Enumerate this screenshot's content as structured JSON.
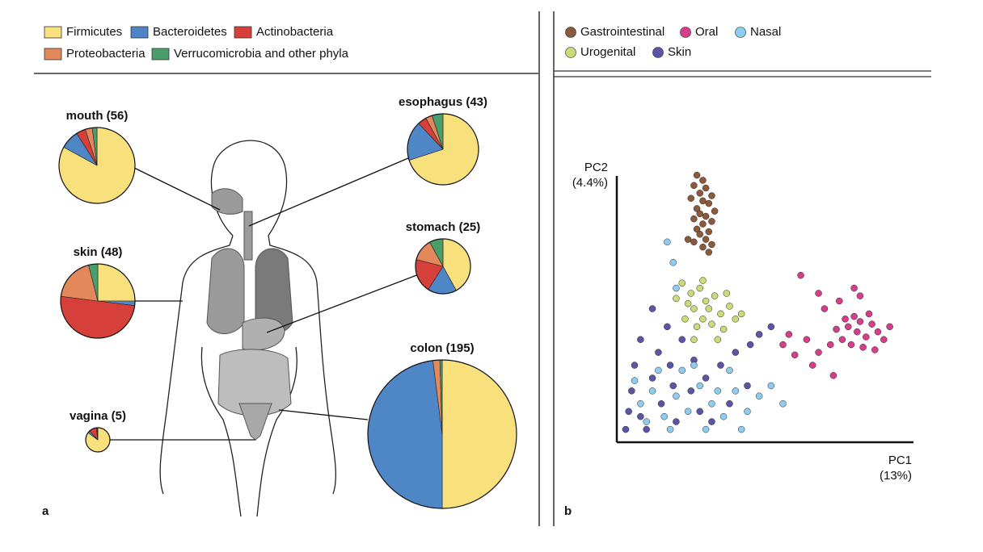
{
  "chart_data": [
    {
      "type": "pie",
      "panel_label": "a",
      "categories": [
        "Firmicutes",
        "Bacteroidetes",
        "Actinobacteria",
        "Proteobacteria",
        "Verrucomicrobia and other phyla"
      ],
      "colors": [
        "#f8e07c",
        "#4f86c6",
        "#d7403a",
        "#e2885a",
        "#4a9e6a"
      ],
      "pies": [
        {
          "title": "mouth (56)",
          "values": [
            83,
            8,
            4,
            3,
            2
          ]
        },
        {
          "title": "esophagus (43)",
          "values": [
            70,
            18,
            4,
            3,
            5
          ]
        },
        {
          "title": "skin (48)",
          "values": [
            25,
            2,
            50,
            19,
            4
          ]
        },
        {
          "title": "stomach (25)",
          "values": [
            42,
            17,
            20,
            13,
            8
          ]
        },
        {
          "title": "vagina (5)",
          "values": [
            85,
            3,
            10,
            1,
            1
          ]
        },
        {
          "title": "colon (195)",
          "values": [
            50,
            48,
            0,
            1.5,
            0.5
          ]
        }
      ]
    },
    {
      "type": "scatter",
      "panel_label": "b",
      "xlabel": [
        "PC1",
        "(13%)"
      ],
      "ylabel": [
        "PC2",
        "(4.4%)"
      ],
      "xlim": [
        0,
        100
      ],
      "ylim": [
        0,
        110
      ],
      "series": [
        {
          "name": "Gastrointestinal",
          "color": "#8b5a3c",
          "x": [
            27,
            29,
            26,
            30,
            28,
            32,
            25,
            29,
            31,
            27,
            33,
            28,
            30,
            26,
            32,
            29,
            27,
            31,
            28,
            30,
            26,
            32,
            29,
            24,
            31
          ],
          "values": [
            104,
            102,
            100,
            99,
            97,
            96,
            95,
            94,
            93,
            91,
            90,
            89,
            88,
            87,
            86,
            85,
            83,
            82,
            81,
            79,
            78,
            77,
            76,
            79,
            74
          ]
        },
        {
          "name": "Oral",
          "color": "#d63e8a",
          "x": [
            81,
            78,
            84,
            86,
            76,
            80,
            88,
            83,
            79,
            85,
            90,
            74,
            82,
            87,
            77,
            92,
            72,
            68,
            64,
            60,
            66,
            58,
            70,
            75,
            68,
            80,
            62,
            56,
            73,
            82
          ],
          "values": [
            43,
            45,
            41,
            46,
            40,
            49,
            43,
            37,
            38,
            50,
            40,
            44,
            47,
            36,
            48,
            45,
            38,
            35,
            40,
            34,
            30,
            42,
            52,
            55,
            58,
            60,
            65,
            38,
            26,
            57
          ]
        },
        {
          "name": "Nasal",
          "color": "#8ecdf0",
          "x": [
            8,
            12,
            16,
            20,
            24,
            28,
            32,
            36,
            14,
            22,
            30,
            40,
            44,
            18,
            26,
            10,
            38,
            48,
            52,
            56,
            34,
            6,
            42,
            19,
            17,
            20
          ],
          "values": [
            15,
            20,
            10,
            18,
            12,
            22,
            15,
            10,
            28,
            28,
            5,
            20,
            12,
            5,
            30,
            8,
            28,
            18,
            22,
            15,
            20,
            24,
            5,
            70,
            78,
            60
          ]
        },
        {
          "name": "Urogenital",
          "color": "#c8dc7a",
          "x": [
            22,
            25,
            28,
            30,
            33,
            26,
            35,
            29,
            24,
            38,
            32,
            27,
            40,
            36,
            23,
            31,
            42,
            20,
            34,
            26,
            29,
            37
          ],
          "values": [
            62,
            58,
            60,
            55,
            57,
            52,
            50,
            48,
            54,
            53,
            46,
            45,
            48,
            44,
            48,
            52,
            50,
            56,
            40,
            40,
            63,
            58
          ]
        },
        {
          "name": "Skin",
          "color": "#5b55a8",
          "x": [
            5,
            8,
            12,
            15,
            10,
            18,
            20,
            6,
            25,
            14,
            22,
            30,
            28,
            35,
            40,
            45,
            38,
            8,
            17,
            32,
            4,
            12,
            26,
            44,
            48,
            52,
            19,
            3
          ],
          "values": [
            20,
            10,
            25,
            15,
            5,
            30,
            8,
            30,
            20,
            35,
            40,
            25,
            12,
            30,
            35,
            38,
            15,
            40,
            45,
            8,
            12,
            52,
            32,
            22,
            42,
            45,
            22,
            5
          ]
        }
      ]
    }
  ]
}
